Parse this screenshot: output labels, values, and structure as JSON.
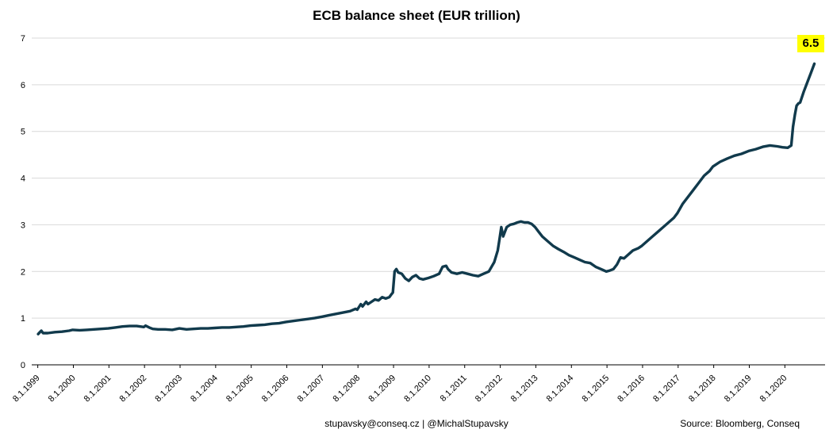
{
  "footer": {
    "credit": "stupavsky@conseq.cz   |   @MichalStupavsky",
    "source": "Source: Bloomberg,  Conseq"
  },
  "chart_data": {
    "type": "line",
    "title": "ECB balance sheet (EUR trillion)",
    "xlabel": "",
    "ylabel": "",
    "ylim": [
      0,
      7
    ],
    "yticks": [
      0,
      1,
      2,
      3,
      4,
      5,
      6,
      7
    ],
    "grid": true,
    "grid_color": "#d9d9d9",
    "axis_color": "#000000",
    "line_color": "#113a4c",
    "legend": "none",
    "x_tick_labels": [
      "8.1.1999",
      "8.1.2000",
      "8.1.2001",
      "8.1.2002",
      "8.1.2003",
      "8.1.2004",
      "8.1.2005",
      "8.1.2006",
      "8.1.2007",
      "8.1.2008",
      "8.1.2009",
      "8.1.2010",
      "8.1.2011",
      "8.1.2012",
      "8.1.2013",
      "8.1.2014",
      "8.1.2015",
      "8.1.2016",
      "8.1.2017",
      "8.1.2018",
      "8.1.2019",
      "8.1.2020"
    ],
    "annotation": {
      "text": "6.5",
      "bg": "#ffff00"
    },
    "series": [
      {
        "name": "ECB balance sheet (EUR trillion)",
        "x": [
          1999.03,
          1999.08,
          1999.12,
          1999.17,
          1999.3,
          1999.5,
          1999.7,
          1999.9,
          2000.0,
          2000.2,
          2000.4,
          2000.6,
          2000.8,
          2001.0,
          2001.2,
          2001.4,
          2001.6,
          2001.8,
          2002.0,
          2002.05,
          2002.15,
          2002.25,
          2002.4,
          2002.6,
          2002.8,
          2003.0,
          2003.2,
          2003.4,
          2003.6,
          2003.8,
          2004.0,
          2004.2,
          2004.4,
          2004.6,
          2004.8,
          2005.0,
          2005.2,
          2005.4,
          2005.6,
          2005.8,
          2006.0,
          2006.2,
          2006.4,
          2006.6,
          2006.8,
          2007.0,
          2007.2,
          2007.4,
          2007.6,
          2007.8,
          2007.95,
          2008.0,
          2008.1,
          2008.15,
          2008.25,
          2008.3,
          2008.4,
          2008.5,
          2008.6,
          2008.7,
          2008.8,
          2008.9,
          2008.95,
          2009.0,
          2009.05,
          2009.1,
          2009.15,
          2009.25,
          2009.35,
          2009.45,
          2009.55,
          2009.65,
          2009.75,
          2009.85,
          2010.0,
          2010.15,
          2010.3,
          2010.4,
          2010.5,
          2010.55,
          2010.65,
          2010.8,
          2010.95,
          2011.1,
          2011.25,
          2011.4,
          2011.55,
          2011.7,
          2011.85,
          2011.95,
          2012.0,
          2012.05,
          2012.1,
          2012.2,
          2012.3,
          2012.4,
          2012.5,
          2012.6,
          2012.7,
          2012.8,
          2012.9,
          2013.0,
          2013.1,
          2013.2,
          2013.35,
          2013.5,
          2013.65,
          2013.8,
          2013.95,
          2014.1,
          2014.25,
          2014.4,
          2014.55,
          2014.7,
          2014.85,
          2015.0,
          2015.1,
          2015.2,
          2015.3,
          2015.4,
          2015.5,
          2015.6,
          2015.75,
          2015.9,
          2016.0,
          2016.15,
          2016.3,
          2016.45,
          2016.6,
          2016.75,
          2016.9,
          2017.0,
          2017.15,
          2017.3,
          2017.45,
          2017.6,
          2017.75,
          2017.9,
          2018.0,
          2018.2,
          2018.4,
          2018.6,
          2018.8,
          2019.0,
          2019.2,
          2019.4,
          2019.6,
          2019.8,
          2019.95,
          2020.1,
          2020.2,
          2020.25,
          2020.3,
          2020.35,
          2020.4,
          2020.45,
          2020.55,
          2020.65,
          2020.75,
          2020.85
        ],
        "values": [
          0.66,
          0.7,
          0.73,
          0.68,
          0.68,
          0.7,
          0.71,
          0.73,
          0.75,
          0.74,
          0.75,
          0.76,
          0.77,
          0.78,
          0.8,
          0.82,
          0.83,
          0.83,
          0.81,
          0.84,
          0.8,
          0.77,
          0.76,
          0.76,
          0.75,
          0.78,
          0.76,
          0.77,
          0.78,
          0.78,
          0.79,
          0.8,
          0.8,
          0.81,
          0.82,
          0.84,
          0.85,
          0.86,
          0.88,
          0.89,
          0.92,
          0.94,
          0.96,
          0.98,
          1.0,
          1.03,
          1.06,
          1.09,
          1.12,
          1.15,
          1.2,
          1.18,
          1.3,
          1.25,
          1.35,
          1.3,
          1.35,
          1.4,
          1.38,
          1.45,
          1.42,
          1.45,
          1.5,
          1.55,
          2.0,
          2.05,
          1.98,
          1.95,
          1.85,
          1.8,
          1.88,
          1.92,
          1.85,
          1.83,
          1.86,
          1.9,
          1.95,
          2.1,
          2.12,
          2.05,
          1.98,
          1.95,
          1.98,
          1.95,
          1.92,
          1.9,
          1.95,
          2.0,
          2.2,
          2.45,
          2.7,
          2.95,
          2.75,
          2.95,
          3.0,
          3.02,
          3.05,
          3.07,
          3.05,
          3.05,
          3.02,
          2.95,
          2.85,
          2.75,
          2.65,
          2.55,
          2.48,
          2.42,
          2.35,
          2.3,
          2.25,
          2.2,
          2.18,
          2.1,
          2.05,
          2.0,
          2.02,
          2.05,
          2.15,
          2.3,
          2.28,
          2.35,
          2.45,
          2.5,
          2.55,
          2.65,
          2.75,
          2.85,
          2.95,
          3.05,
          3.15,
          3.25,
          3.45,
          3.6,
          3.75,
          3.9,
          4.05,
          4.15,
          4.25,
          4.35,
          4.42,
          4.48,
          4.52,
          4.58,
          4.62,
          4.67,
          4.7,
          4.68,
          4.66,
          4.65,
          4.7,
          5.1,
          5.35,
          5.55,
          5.6,
          5.62,
          5.85,
          6.05,
          6.25,
          6.45
        ]
      }
    ]
  }
}
